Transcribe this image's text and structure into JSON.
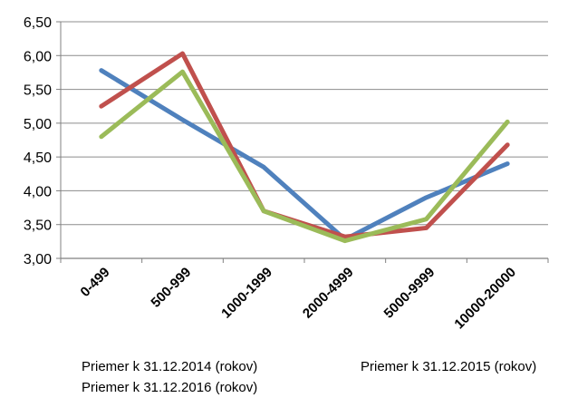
{
  "chart_data": {
    "type": "line",
    "categories": [
      "0-499",
      "500-999",
      "1000-1999",
      "2000-4999",
      "5000-9999",
      "10000-20000"
    ],
    "ylim": [
      3.0,
      6.5
    ],
    "yticks": [
      "3,00",
      "3,50",
      "4,00",
      "4,50",
      "5,00",
      "5,50",
      "6,00",
      "6,50"
    ],
    "grid": true,
    "legend_position": "bottom",
    "series": [
      {
        "name": "Priemer k 31.12.2014 (rokov)",
        "color": "#4f81bd",
        "values": [
          5.78,
          5.05,
          4.35,
          3.28,
          3.9,
          4.4
        ]
      },
      {
        "name": "Priemer k 31.12.2015 (rokov)",
        "color": "#c0504d",
        "values": [
          5.25,
          6.03,
          3.7,
          3.32,
          3.45,
          4.68
        ]
      },
      {
        "name": "Priemer k 31.12.2016 (rokov)",
        "color": "#9bbb59",
        "values": [
          4.8,
          5.76,
          3.7,
          3.26,
          3.58,
          5.02
        ]
      }
    ]
  }
}
